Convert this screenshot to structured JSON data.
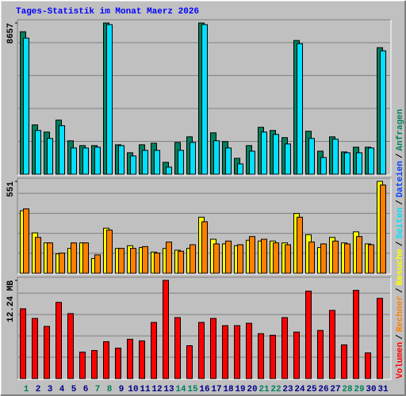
{
  "title": "Tages-Statistik im Monat Maerz 2026",
  "legend_separator": "/",
  "legend": [
    {
      "name": "Volumen",
      "color": "#ff0000"
    },
    {
      "name": "Rechner",
      "color": "#ff8000"
    },
    {
      "name": "Besuche",
      "color": "#ffff00"
    },
    {
      "name": "Seiten",
      "color": "#00e0ff"
    },
    {
      "name": "Dateien",
      "color": "#0040ff"
    },
    {
      "name": "Anfragen",
      "color": "#00805c"
    }
  ],
  "chart_data": [
    {
      "type": "bar",
      "ylim": [
        0,
        8657
      ],
      "yticks": [
        8657
      ],
      "series": [
        {
          "color": "#00805c",
          "values": [
            8155,
            2825,
            2415,
            3098,
            1914,
            1640,
            1640,
            8657,
            1686,
            1230,
            1686,
            1777,
            683,
            1822,
            2141,
            8657,
            2369,
            1868,
            911,
            1640,
            2688,
            2506,
            2096,
            7654,
            2460,
            1321,
            2141,
            1276,
            1549,
            1549,
            7244
          ]
        },
        {
          "color": "#00e0ff",
          "values": [
            7791,
            2506,
            2050,
            2779,
            1503,
            1503,
            1549,
            8565,
            1640,
            1048,
            1367,
            1367,
            410,
            1367,
            1822,
            8565,
            1914,
            1503,
            592,
            1321,
            2415,
            2278,
            1731,
            7472,
            2050,
            957,
            2005,
            1230,
            1230,
            1503,
            7062
          ]
        }
      ]
    },
    {
      "type": "bar",
      "ylim": [
        0,
        551
      ],
      "yticks": [
        551
      ],
      "series": [
        {
          "color": "#ffff00",
          "values": [
            375,
            242,
            182,
            116,
            149,
            182,
            88,
            270,
            149,
            165,
            154,
            127,
            149,
            138,
            149,
            336,
            204,
            176,
            165,
            198,
            193,
            193,
            182,
            358,
            231,
            154,
            215,
            182,
            248,
            176,
            551
          ]
        },
        {
          "color": "#ff8000",
          "values": [
            386,
            215,
            182,
            121,
            182,
            182,
            110,
            259,
            149,
            149,
            160,
            121,
            187,
            132,
            171,
            309,
            176,
            193,
            171,
            220,
            204,
            182,
            171,
            336,
            187,
            176,
            193,
            176,
            220,
            171,
            529
          ]
        }
      ]
    },
    {
      "type": "bar",
      "ylim": [
        0,
        12.24
      ],
      "yticks": [
        {
          "value": 12.24,
          "label": "12.24 MB"
        }
      ],
      "categories": [
        "1",
        "2",
        "3",
        "4",
        "5",
        "6",
        "7",
        "8",
        "9",
        "10",
        "11",
        "12",
        "13",
        "14",
        "15",
        "16",
        "17",
        "18",
        "19",
        "20",
        "21",
        "22",
        "23",
        "24",
        "25",
        "26",
        "27",
        "28",
        "29",
        "30",
        "31"
      ],
      "category_colors": [
        "#00805c",
        "#00008b",
        "#00008b",
        "#00008b",
        "#00008b",
        "#00008b",
        "#00805c",
        "#00805c",
        "#00008b",
        "#00008b",
        "#00008b",
        "#00008b",
        "#00008b",
        "#00805c",
        "#00805c",
        "#00008b",
        "#00008b",
        "#00008b",
        "#00008b",
        "#00008b",
        "#00805c",
        "#00805c",
        "#00008b",
        "#00008b",
        "#00008b",
        "#00008b",
        "#00008b",
        "#00805c",
        "#00805c",
        "#00008b",
        "#00008b"
      ],
      "series": [
        {
          "color": "#ff0000",
          "values": [
            8.7,
            7.5,
            6.5,
            9.5,
            8.1,
            3.3,
            3.5,
            4.6,
            3.8,
            4.9,
            4.7,
            7.0,
            12.24,
            7.6,
            4.1,
            7.0,
            7.5,
            6.6,
            6.6,
            6.9,
            5.6,
            5.4,
            7.6,
            5.8,
            10.9,
            6.0,
            8.5,
            4.2,
            11.0,
            3.2,
            10.0
          ]
        }
      ]
    }
  ]
}
